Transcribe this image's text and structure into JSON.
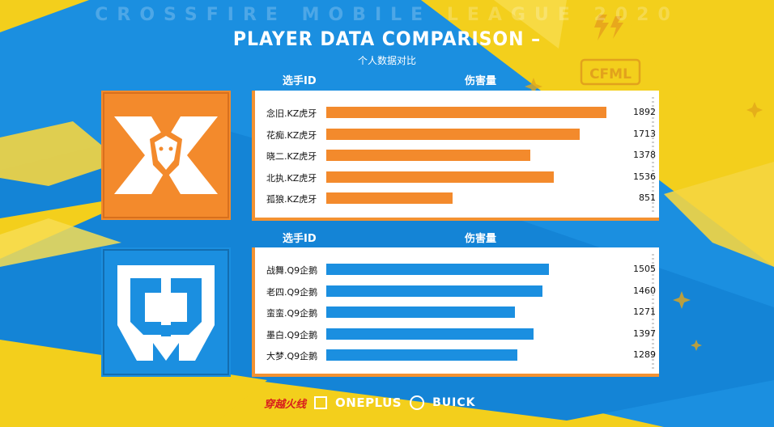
{
  "watermark": "CROSSFIRE MOBILE LEAGUE 2020",
  "title": "PLAYER DATA COMPARISON –",
  "subtitle": "个人数据对比",
  "badge_text": "CFML",
  "colors": {
    "background": "#f3cf1c",
    "blue": "#1b8fe0",
    "orange": "#f38a2c",
    "panel": "#ffffff"
  },
  "chart_data": [
    {
      "type": "bar",
      "team": "KZ虎牙",
      "logo_icon": "kz-dragon-logo",
      "column_headers": {
        "name": "选手ID",
        "value": "伤害量"
      },
      "color": "#f38a2c",
      "categories": [
        "念旧.KZ虎牙",
        "花痴.KZ虎牙",
        "晓二.KZ虎牙",
        "北执.KZ虎牙",
        "孤狼.KZ虎牙"
      ],
      "values": [
        1892,
        1713,
        1378,
        1536,
        851
      ],
      "xlim": [
        0,
        2000
      ]
    },
    {
      "type": "bar",
      "team": "Q9企鹅",
      "logo_icon": "q9-logo",
      "column_headers": {
        "name": "选手ID",
        "value": "伤害量"
      },
      "color": "#1b8fe0",
      "categories": [
        "战舞.Q9企鹅",
        "老四.Q9企鹅",
        "蛮蛮.Q9企鹅",
        "墨白.Q9企鹅",
        "大梦.Q9企鹅"
      ],
      "values": [
        1505,
        1460,
        1271,
        1397,
        1289
      ],
      "xlim": [
        0,
        2000
      ]
    }
  ],
  "sponsors": [
    "穿越火线",
    "ONEPLUS",
    "BUICK"
  ]
}
